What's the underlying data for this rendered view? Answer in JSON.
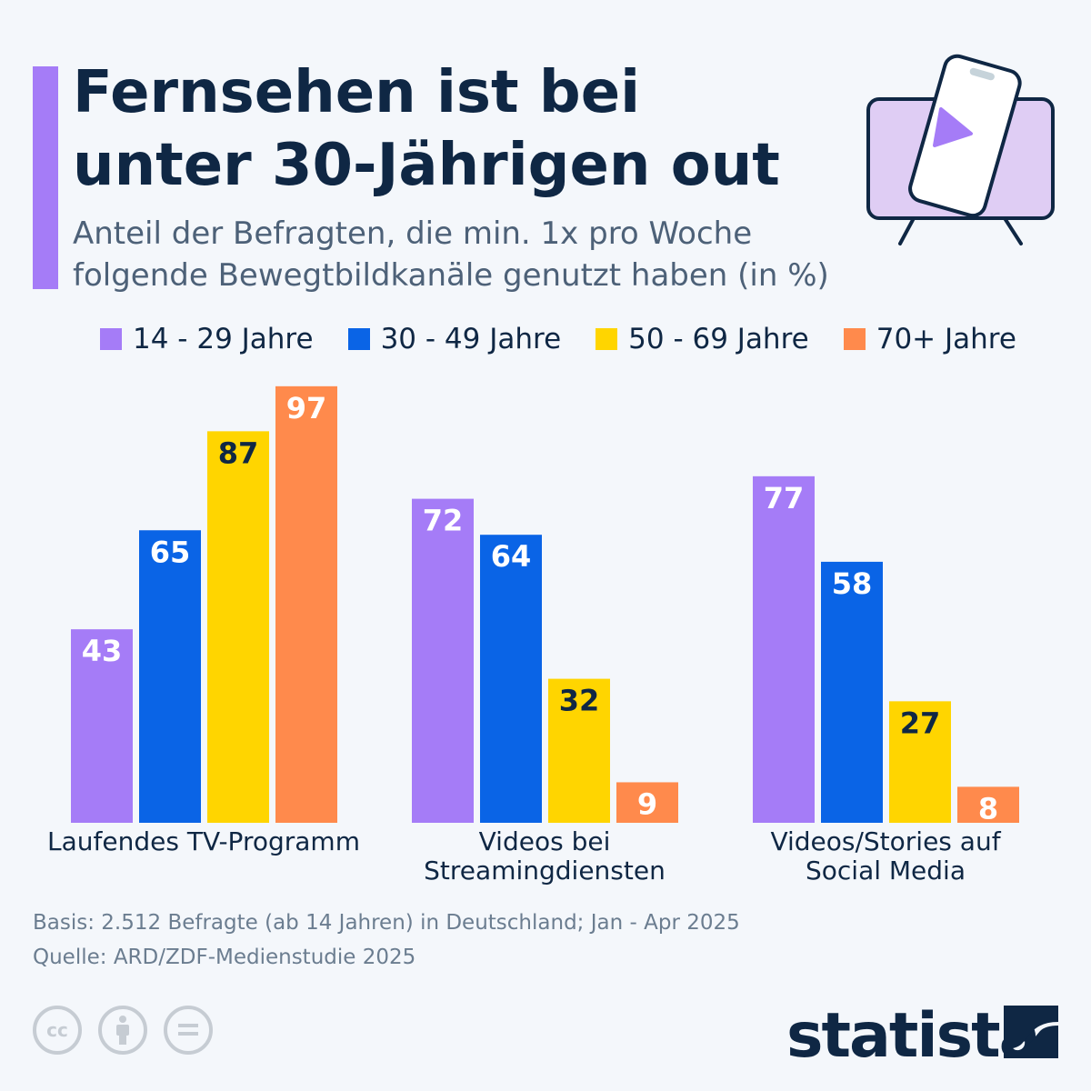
{
  "header": {
    "title_line1": "Fernsehen ist bei",
    "title_line2": "unter 30-Jährigen out",
    "subtitle_line1": "Anteil der Befragten, die min. 1x pro Woche",
    "subtitle_line2": "folgende Bewegtbildkanäle genutzt haben (in %)"
  },
  "icon": "tv-with-smartphone-play-icon",
  "chart_data": {
    "type": "bar",
    "categories": [
      "Laufendes TV-Programm",
      "Videos bei Streamingdiensten",
      "Videos/Stories auf Social Media"
    ],
    "category_lines": [
      [
        "Laufendes TV-Programm"
      ],
      [
        "Videos bei",
        "Streamingdiensten"
      ],
      [
        "Videos/Stories auf",
        "Social Media"
      ]
    ],
    "series": [
      {
        "name": "14 - 29 Jahre",
        "color": "#a57cf7",
        "label_color": "#ffffff",
        "values": [
          43,
          72,
          77
        ]
      },
      {
        "name": "30 - 49 Jahre",
        "color": "#0a64e6",
        "label_color": "#ffffff",
        "values": [
          65,
          64,
          58
        ]
      },
      {
        "name": "50 - 69 Jahre",
        "color": "#ffd500",
        "label_color": "#0f2744",
        "values": [
          87,
          32,
          27
        ]
      },
      {
        "name": "70+ Jahre",
        "color": "#ff8a4c",
        "label_color": "#ffffff",
        "values": [
          97,
          9,
          8
        ]
      }
    ],
    "ylim": [
      0,
      100
    ],
    "grid": false,
    "legend_placement": "top",
    "ylabel": "",
    "xlabel": ""
  },
  "footer": {
    "basis": "Basis: 2.512 Befragte (ab 14 Jahren) in Deutschland; Jan - Apr 2025",
    "source": "Quelle: ARD/ZDF-Medienstudie 2025",
    "brand": "statista",
    "license_icons": [
      "cc-icon",
      "attribution-icon",
      "no-derivatives-icon"
    ]
  }
}
